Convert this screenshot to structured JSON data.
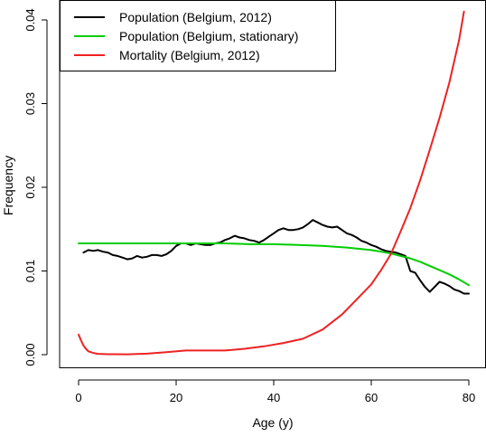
{
  "chart_data": {
    "type": "line",
    "title": "",
    "xlabel": "Age (y)",
    "ylabel": "Frequency",
    "xlim": [
      -1,
      81
    ],
    "ylim": [
      -0.0015,
      0.0425
    ],
    "xticks": [
      0,
      20,
      40,
      60,
      80
    ],
    "yticks": [
      0.0,
      0.01,
      0.02,
      0.03,
      0.04
    ],
    "xtick_labels": [
      "0",
      "20",
      "40",
      "60",
      "80"
    ],
    "ytick_labels": [
      "0.00",
      "0.01",
      "0.02",
      "0.03",
      "0.04"
    ],
    "grid": false,
    "legend_position": "top-left",
    "series": [
      {
        "name": "Population (Belgium, 2012)",
        "color": "#000000",
        "x": [
          1,
          2,
          3,
          4,
          5,
          6,
          7,
          8,
          9,
          10,
          11,
          12,
          13,
          14,
          15,
          16,
          17,
          18,
          19,
          20,
          21,
          22,
          23,
          24,
          25,
          26,
          27,
          28,
          29,
          30,
          31,
          32,
          33,
          34,
          35,
          36,
          37,
          38,
          39,
          40,
          41,
          42,
          43,
          44,
          45,
          46,
          47,
          48,
          49,
          50,
          51,
          52,
          53,
          54,
          55,
          56,
          57,
          58,
          59,
          60,
          61,
          62,
          63,
          64,
          65,
          66,
          67,
          68,
          69,
          70,
          71,
          72,
          73,
          74,
          75,
          76,
          77,
          78,
          79,
          80
        ],
        "values": [
          0.0122,
          0.0125,
          0.0124,
          0.0125,
          0.0123,
          0.0122,
          0.0119,
          0.0118,
          0.0116,
          0.0114,
          0.0115,
          0.0118,
          0.0116,
          0.0117,
          0.0119,
          0.0119,
          0.0118,
          0.012,
          0.0124,
          0.013,
          0.0133,
          0.0133,
          0.0131,
          0.0133,
          0.0132,
          0.0131,
          0.0131,
          0.0133,
          0.0134,
          0.0137,
          0.0139,
          0.0142,
          0.014,
          0.0139,
          0.0137,
          0.0136,
          0.0134,
          0.0137,
          0.0141,
          0.0145,
          0.0149,
          0.0151,
          0.0149,
          0.0149,
          0.015,
          0.0152,
          0.0156,
          0.0161,
          0.0158,
          0.0155,
          0.0153,
          0.0152,
          0.0153,
          0.0149,
          0.0145,
          0.0143,
          0.014,
          0.0136,
          0.0134,
          0.0131,
          0.0129,
          0.0126,
          0.0124,
          0.0123,
          0.0122,
          0.012,
          0.0118,
          0.01,
          0.0098,
          0.0089,
          0.0081,
          0.0075,
          0.0081,
          0.0087,
          0.0085,
          0.0082,
          0.0078,
          0.0076,
          0.0073,
          0.0073
        ]
      },
      {
        "name": "Population (Belgium, stationary)",
        "color": "#00cd00",
        "x": [
          0,
          10,
          20,
          30,
          35,
          40,
          45,
          50,
          55,
          60,
          62,
          64,
          66,
          68,
          70,
          72,
          74,
          76,
          78,
          80
        ],
        "values": [
          0.0133,
          0.0133,
          0.0133,
          0.0133,
          0.0132,
          0.0132,
          0.0131,
          0.013,
          0.0128,
          0.0125,
          0.0123,
          0.0121,
          0.0118,
          0.0115,
          0.0111,
          0.0106,
          0.0101,
          0.0096,
          0.009,
          0.0083
        ]
      },
      {
        "name": "Mortality (Belgium, 2012)",
        "color": "#ee2222",
        "x": [
          0,
          0.5,
          1,
          1.5,
          2,
          3,
          4,
          6,
          10,
          14,
          18,
          22,
          26,
          30,
          34,
          38,
          42,
          46,
          50,
          54,
          58,
          60,
          62,
          64,
          66,
          68,
          70,
          72,
          74,
          76,
          78,
          79
        ],
        "values": [
          0.0024,
          0.0017,
          0.0011,
          0.0007,
          0.0004,
          0.0002,
          0.0001,
          5e-05,
          4e-05,
          0.00012,
          0.0003,
          0.0005,
          0.0005,
          0.0005,
          0.0007,
          0.001,
          0.0014,
          0.0019,
          0.003,
          0.0048,
          0.0072,
          0.0084,
          0.0101,
          0.012,
          0.0147,
          0.0175,
          0.0208,
          0.0245,
          0.0283,
          0.0325,
          0.0376,
          0.041
        ]
      }
    ]
  }
}
